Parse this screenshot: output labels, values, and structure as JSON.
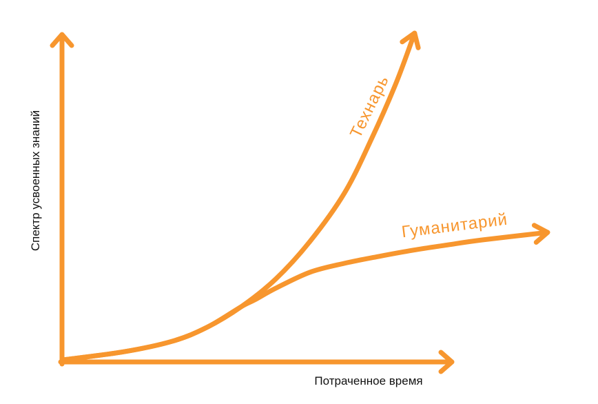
{
  "chart_data": {
    "type": "line",
    "title": "",
    "xlabel": "Потраченное время",
    "ylabel": "Спектр усвоенных знаний",
    "xlim": [
      0,
      125
    ],
    "ylim": [
      0,
      100
    ],
    "grid": false,
    "color": "#f7962e",
    "series": [
      {
        "name": "Технарь",
        "x": [
          0,
          15.8,
          28.2,
          37,
          45.8,
          54.6,
          63.4,
          72.2,
          79.2,
          85.4,
          90.1
        ],
        "y": [
          0.6,
          3.1,
          6.3,
          10.5,
          16.8,
          25.2,
          36.7,
          51.4,
          68.1,
          84.9,
          100
        ]
      },
      {
        "name": "Гуманитарий",
        "x": [
          0,
          15.8,
          28.2,
          37,
          45.8,
          49.3,
          54.6,
          63.4,
          72.2,
          81,
          89.8,
          98.6,
          107.4,
          124.1
        ],
        "y": [
          0.6,
          3.1,
          6.3,
          10.5,
          16.8,
          18.9,
          22.4,
          27.3,
          30,
          32.1,
          34,
          35.6,
          37.1,
          39.4
        ]
      }
    ]
  }
}
